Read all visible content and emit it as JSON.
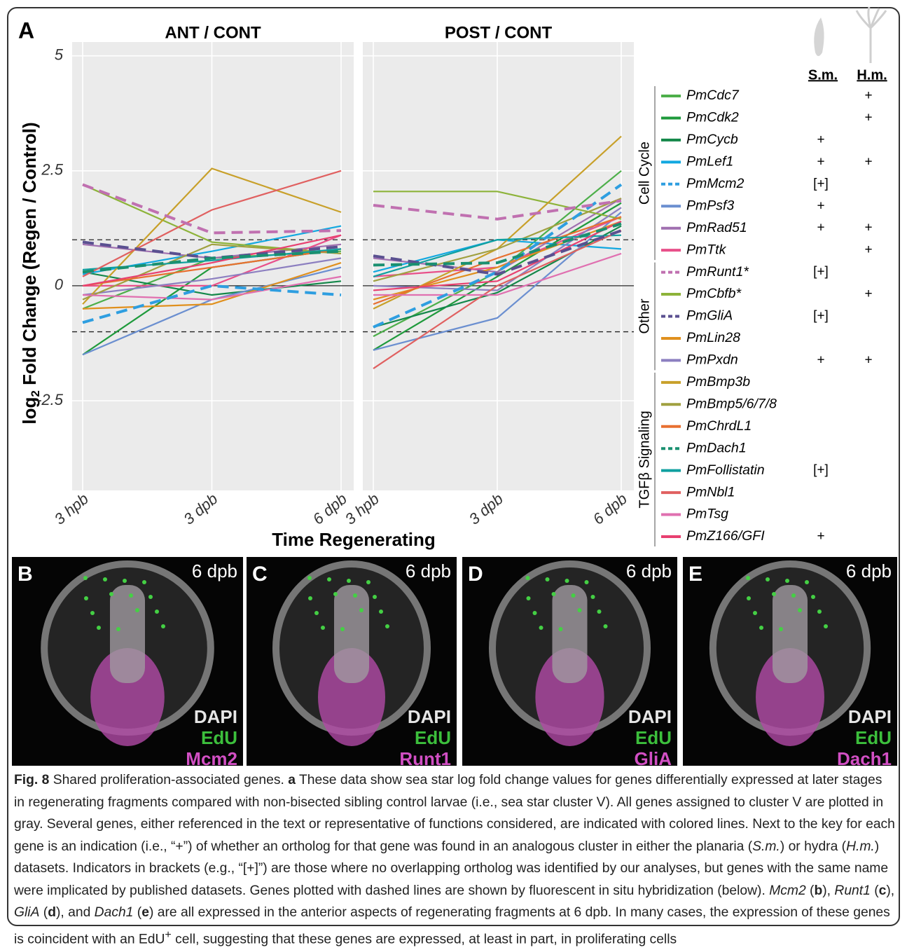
{
  "chart_data": {
    "type": "line",
    "panel_label": "A",
    "panels": [
      "ANT / CONT",
      "POST / CONT"
    ],
    "categories": [
      "3 hpb",
      "3 dpb",
      "6 dpb"
    ],
    "xlabel": "Time Regenerating",
    "ylabel": [
      "log",
      "2",
      " Fold Change (Regen / Control)"
    ],
    "ylim": [
      -4.45,
      5.3
    ],
    "yticks": [
      5,
      2.5,
      0,
      -2.5
    ],
    "grid": true,
    "reference_lines": [
      {
        "value": 1,
        "dashed": true
      },
      {
        "value": 0,
        "dashed": false
      },
      {
        "value": -1,
        "dashed": true
      }
    ],
    "ortholog_columns": [
      "S.m.",
      "H.m."
    ],
    "groups": [
      {
        "label": "Cell Cycle",
        "series": [
          {
            "name": "PmCdc7",
            "color": "#4daf4a",
            "dashed": false,
            "orthologs": [
              null,
              "+"
            ],
            "values": [
              [
                -0.5,
                0.6,
                0.75
              ],
              [
                -1.1,
                0.3,
                2.5
              ]
            ]
          },
          {
            "name": "PmCdk2",
            "color": "#1f9a3c",
            "dashed": false,
            "orthologs": [
              null,
              "+"
            ],
            "values": [
              [
                -1.5,
                0.4,
                0.8
              ],
              [
                -1.4,
                0.2,
                1.8
              ]
            ]
          },
          {
            "name": "PmCycb",
            "color": "#14884a",
            "dashed": false,
            "orthologs": [
              "+",
              null
            ],
            "values": [
              [
                0.3,
                -0.2,
                0.1
              ],
              [
                -0.9,
                -0.15,
                1.3
              ]
            ]
          },
          {
            "name": "PmLef1",
            "color": "#12a8e0",
            "dashed": false,
            "orthologs": [
              "+",
              "+"
            ],
            "values": [
              [
                0.25,
                0.75,
                1.3
              ],
              [
                0.3,
                1.0,
                0.8
              ]
            ]
          },
          {
            "name": "PmMcm2",
            "color": "#2e9ee0",
            "dashed": true,
            "orthologs": [
              "[+]",
              null
            ],
            "values": [
              [
                -0.8,
                0.0,
                -0.2
              ],
              [
                -0.9,
                0.3,
                2.2
              ]
            ]
          },
          {
            "name": "PmPsf3",
            "color": "#6b8fd0",
            "dashed": false,
            "orthologs": [
              "+",
              null
            ],
            "values": [
              [
                -1.5,
                -0.3,
                0.4
              ],
              [
                -1.4,
                -0.7,
                1.6
              ]
            ]
          },
          {
            "name": "PmRad51",
            "color": "#a070b0",
            "dashed": false,
            "orthologs": [
              "+",
              "+"
            ],
            "values": [
              [
                0.9,
                0.6,
                0.9
              ],
              [
                0.6,
                0.3,
                1.9
              ]
            ]
          },
          {
            "name": "PmTtk",
            "color": "#e8508a",
            "dashed": false,
            "orthologs": [
              null,
              "+"
            ],
            "values": [
              [
                0.0,
                0.0,
                1.1
              ],
              [
                0.2,
                0.4,
                1.5
              ]
            ]
          }
        ]
      },
      {
        "label": "Other",
        "series": [
          {
            "name": "PmRunt1*",
            "color": "#c070b0",
            "dashed": true,
            "orthologs": [
              "[+]",
              null
            ],
            "values": [
              [
                2.2,
                1.15,
                1.2
              ],
              [
                1.75,
                1.45,
                1.85
              ]
            ]
          },
          {
            "name": "PmCbfb*",
            "color": "#8db33a",
            "dashed": false,
            "orthologs": [
              null,
              "+"
            ],
            "values": [
              [
                2.2,
                0.95,
                0.7
              ],
              [
                2.05,
                2.05,
                1.45
              ]
            ]
          },
          {
            "name": "PmGliA",
            "color": "#5a5090",
            "dashed": true,
            "orthologs": [
              "[+]",
              null
            ],
            "values": [
              [
                0.95,
                0.6,
                0.85
              ],
              [
                0.65,
                0.25,
                1.2
              ]
            ]
          },
          {
            "name": "PmLin28",
            "color": "#e0901e",
            "dashed": false,
            "orthologs": [
              null,
              null
            ],
            "values": [
              [
                -0.5,
                -0.4,
                0.5
              ],
              [
                -0.3,
                0.4,
                1.4
              ]
            ]
          },
          {
            "name": "PmPxdn",
            "color": "#8c7fc0",
            "dashed": false,
            "orthologs": [
              "+",
              "+"
            ],
            "values": [
              [
                -0.2,
                0.15,
                0.6
              ],
              [
                0.0,
                -0.1,
                1.7
              ]
            ]
          }
        ]
      },
      {
        "label": "TGFβ Signaling",
        "series": [
          {
            "name": "PmBmp3b",
            "color": "#c8a02a",
            "dashed": false,
            "orthologs": [
              null,
              null
            ],
            "values": [
              [
                -0.4,
                2.55,
                1.6
              ],
              [
                -0.5,
                0.8,
                3.25
              ]
            ]
          },
          {
            "name": "PmBmp5/6/7/8",
            "color": "#a0a040",
            "dashed": false,
            "orthologs": [
              null,
              null
            ],
            "values": [
              [
                -0.3,
                0.9,
                0.7
              ],
              [
                0.1,
                0.8,
                1.9
              ]
            ]
          },
          {
            "name": "PmChrdL1",
            "color": "#e87030",
            "dashed": false,
            "orthologs": [
              null,
              null
            ],
            "values": [
              [
                0.0,
                0.4,
                0.8
              ],
              [
                -0.4,
                0.6,
                1.5
              ]
            ]
          },
          {
            "name": "PmDach1",
            "color": "#1a9070",
            "dashed": true,
            "orthologs": [
              null,
              null
            ],
            "values": [
              [
                0.3,
                0.6,
                0.75
              ],
              [
                0.45,
                0.5,
                1.35
              ]
            ]
          },
          {
            "name": "PmFollistatin",
            "color": "#10a0a0",
            "dashed": false,
            "orthologs": [
              "[+]",
              null
            ],
            "values": [
              [
                0.35,
                0.55,
                0.8
              ],
              [
                0.2,
                1.0,
                1.1
              ]
            ]
          },
          {
            "name": "PmNbl1",
            "color": "#e06060",
            "dashed": false,
            "orthologs": [
              null,
              null
            ],
            "values": [
              [
                0.2,
                1.65,
                2.5
              ],
              [
                -1.8,
                0.0,
                1.2
              ]
            ]
          },
          {
            "name": "PmTsg",
            "color": "#e070b0",
            "dashed": false,
            "orthologs": [
              null,
              null
            ],
            "values": [
              [
                -0.2,
                -0.3,
                0.2
              ],
              [
                -0.2,
                -0.2,
                0.7
              ]
            ]
          },
          {
            "name": "PmZ166/GFI",
            "color": "#e84070",
            "dashed": false,
            "orthologs": [
              "+",
              null
            ],
            "values": [
              [
                0.0,
                0.5,
                1.1
              ],
              [
                -0.1,
                0.1,
                1.4
              ]
            ]
          }
        ]
      }
    ]
  },
  "images": [
    {
      "label": "B",
      "stage": "6 dpb",
      "stains": [
        "DAPI",
        "EdU",
        "Mcm2"
      ]
    },
    {
      "label": "C",
      "stage": "6 dpb",
      "stains": [
        "DAPI",
        "EdU",
        "Runt1"
      ]
    },
    {
      "label": "D",
      "stage": "6 dpb",
      "stains": [
        "DAPI",
        "EdU",
        "GliA"
      ]
    },
    {
      "label": "E",
      "stage": "6 dpb",
      "stains": [
        "DAPI",
        "EdU",
        "Dach1"
      ]
    }
  ],
  "caption": [
    "Fig. 8",
    " Shared proliferation-associated genes. ",
    "a",
    " These data show sea star log fold change values for genes differentially expressed at later stages in regenerating fragments compared with non-bisected sibling control larvae (i.e., sea star cluster V). All genes assigned to cluster V are plotted in gray. Several genes, either referenced in the text or representative of functions considered, are indicated with colored lines. Next to the key for each gene is an indication (i.e., “+”) of whether an ortholog for that gene was found in an analogous cluster in either the planaria (",
    "S.m.",
    ") or hydra (",
    "H.m.",
    ") datasets. Indicators in brackets (e.g., “[+]”) are those where no overlapping ortholog was identified by our analyses, but genes with the same name were implicated by published datasets. Genes plotted with dashed lines are shown by fluorescent in situ hybridization (below). ",
    "Mcm2",
    " (",
    "b",
    "), ",
    "Runt1",
    " (",
    "c",
    "), ",
    "GliA",
    " (",
    "d",
    "), and ",
    "Dach1",
    " (",
    "e",
    ") are all expressed in the anterior aspects of regenerating fragments at 6 dpb. In many cases, the expression of these genes is coincident with an EdU",
    "+",
    " cell, suggesting that these genes are expressed, at least in part, in proliferating cells"
  ]
}
